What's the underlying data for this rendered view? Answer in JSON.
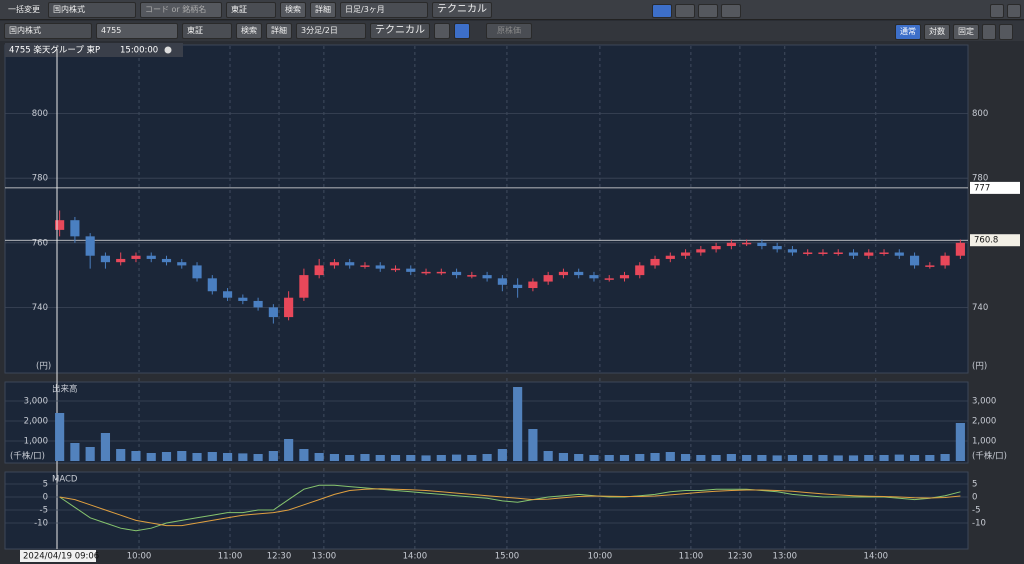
{
  "toolbar1": {
    "bulk_change": "一括変更",
    "market": "国内株式",
    "search_placeholder": "コード or 銘柄名",
    "exchange": "東証",
    "search": "検索",
    "detail": "詳細",
    "period": "日足/3ヶ月",
    "technical": "テクニカル"
  },
  "toolbar2": {
    "market": "国内株式",
    "code": "4755",
    "exchange": "東証",
    "search": "検索",
    "detail": "詳細",
    "period": "3分足/2日",
    "technical": "テクニカル",
    "original_price": "原株価",
    "normal": "通常",
    "log": "対数",
    "fixed": "固定"
  },
  "chart_header": {
    "symbol": "4755 楽天グループ 東P",
    "time": "15:00:00"
  },
  "chart_data": [
    {
      "type": "candlestick",
      "y_unit": "(円)",
      "up_color": "#e8485a",
      "down_color": "#4a7fc1",
      "open": [
        764,
        767,
        762,
        756,
        754,
        755,
        756,
        755,
        754,
        753,
        749,
        745,
        743,
        742,
        740,
        737,
        743,
        750,
        753,
        754,
        753,
        753,
        752,
        752,
        751,
        751,
        751,
        750,
        750,
        749,
        747,
        746,
        748,
        750,
        751,
        750,
        749,
        749,
        750,
        753,
        755,
        756,
        757,
        758,
        759,
        760,
        760,
        759,
        758,
        757,
        757,
        757,
        757,
        756,
        757,
        757,
        756,
        753,
        753,
        756
      ],
      "high": [
        770,
        768,
        763,
        757,
        757,
        757,
        757,
        756,
        755,
        754,
        750,
        746,
        744,
        743,
        741,
        745,
        752,
        755,
        755,
        755,
        754,
        754,
        753,
        753,
        752,
        752,
        752,
        751,
        751,
        750,
        749,
        749,
        751,
        752,
        752,
        751,
        750,
        751,
        754,
        756,
        757,
        758,
        759,
        760,
        761,
        761,
        761,
        760,
        759,
        758,
        758,
        758,
        758,
        758,
        758,
        758,
        757,
        754,
        757,
        761
      ],
      "low": [
        762,
        760,
        752,
        752,
        753,
        754,
        754,
        753,
        752,
        748,
        744,
        742,
        741,
        739,
        735,
        736,
        742,
        749,
        752,
        752,
        752,
        751,
        751,
        750,
        750,
        750,
        749,
        749,
        748,
        745,
        743,
        745,
        747,
        749,
        749,
        748,
        748,
        748,
        749,
        752,
        754,
        755,
        756,
        757,
        758,
        759,
        758,
        757,
        756,
        756,
        756,
        756,
        755,
        755,
        756,
        755,
        752,
        752,
        752,
        755
      ],
      "close": [
        767,
        762,
        756,
        754,
        755,
        756,
        755,
        754,
        753,
        749,
        745,
        743,
        742,
        740,
        737,
        743,
        750,
        753,
        754,
        753,
        753,
        752,
        752,
        751,
        751,
        751,
        750,
        750,
        749,
        747,
        746,
        748,
        750,
        751,
        750,
        749,
        749,
        750,
        753,
        755,
        756,
        757,
        758,
        759,
        760,
        760,
        759,
        758,
        757,
        757,
        757,
        757,
        756,
        757,
        757,
        756,
        753,
        753,
        756,
        760
      ],
      "ylim": [
        720,
        820
      ],
      "yticks": [
        740,
        760,
        780,
        800
      ],
      "grid": true,
      "hlines": [
        777,
        760.8
      ],
      "xticks": [
        {
          "value": 5.7,
          "label": "10:00"
        },
        {
          "value": 11.66,
          "label": "11:00"
        },
        {
          "value": 14.87,
          "label": "12:30"
        },
        {
          "value": 17.81,
          "label": "13:00"
        },
        {
          "value": 23.77,
          "label": "14:00"
        },
        {
          "value": 29.8,
          "label": "15:00"
        },
        {
          "value": 35.89,
          "label": "10:00"
        },
        {
          "value": 41.85,
          "label": "11:00"
        },
        {
          "value": 45.06,
          "label": "12:30"
        },
        {
          "value": 48.0,
          "label": "13:00"
        },
        {
          "value": 53.96,
          "label": "14:00"
        }
      ],
      "cursor_label": "2024/04/19 09:06"
    },
    {
      "type": "bar",
      "title": "出来高",
      "y_unit": "(千株/口)",
      "color": "#5282bd",
      "values": [
        2400,
        900,
        700,
        1400,
        600,
        500,
        400,
        450,
        500,
        400,
        450,
        400,
        380,
        350,
        500,
        1100,
        600,
        400,
        350,
        300,
        350,
        300,
        300,
        300,
        280,
        300,
        320,
        300,
        350,
        600,
        3700,
        1600,
        500,
        400,
        350,
        300,
        300,
        300,
        350,
        400,
        450,
        350,
        300,
        300,
        350,
        300,
        300,
        280,
        300,
        300,
        300,
        280,
        280,
        300,
        300,
        320,
        300,
        300,
        350,
        1900
      ],
      "ylim": [
        0,
        4000
      ],
      "yticks": [
        {
          "value": 1000,
          "label": "1,000"
        },
        {
          "value": 2000,
          "label": "2,000"
        },
        {
          "value": 3000,
          "label": "3,000"
        }
      ],
      "grid": true
    },
    {
      "type": "line",
      "title": "MACD",
      "series": [
        {
          "color": "#86c46e",
          "values": [
            0,
            -4,
            -8,
            -10,
            -12,
            -13,
            -12,
            -10,
            -9,
            -8,
            -7,
            -6,
            -6,
            -5,
            -5,
            -1,
            3,
            4.5,
            4.5,
            4,
            3.5,
            3,
            2.5,
            2,
            1.5,
            1,
            0.5,
            0,
            -0.5,
            -1.5,
            -2,
            -1,
            0,
            0.5,
            1,
            0.5,
            0,
            0,
            0.5,
            1,
            2,
            2.5,
            2.5,
            3,
            3,
            3,
            2.5,
            2,
            1,
            0.5,
            0,
            0,
            0,
            0,
            0,
            -0.5,
            -1,
            -0.5,
            0.5,
            2
          ]
        },
        {
          "color": "#e0a040",
          "values": [
            0,
            -1,
            -3,
            -5,
            -7,
            -9,
            -10,
            -11,
            -11,
            -10,
            -9,
            -8,
            -7,
            -6.5,
            -6,
            -5,
            -3,
            -1,
            1,
            2.5,
            3,
            3.2,
            3,
            2.8,
            2.5,
            2,
            1.5,
            1,
            0.5,
            0,
            -0.5,
            -1,
            -0.8,
            -0.3,
            0.2,
            0.4,
            0.3,
            0.2,
            0.2,
            0.4,
            0.8,
            1.3,
            1.8,
            2.2,
            2.5,
            2.7,
            2.7,
            2.5,
            2.2,
            1.7,
            1.2,
            0.8,
            0.5,
            0.3,
            0.2,
            0,
            -0.3,
            -0.4,
            -0.2,
            0.4
          ]
        }
      ],
      "ylim": [
        -20,
        10
      ],
      "yticks": [
        -10,
        -5,
        0,
        5
      ],
      "grid": true
    }
  ]
}
